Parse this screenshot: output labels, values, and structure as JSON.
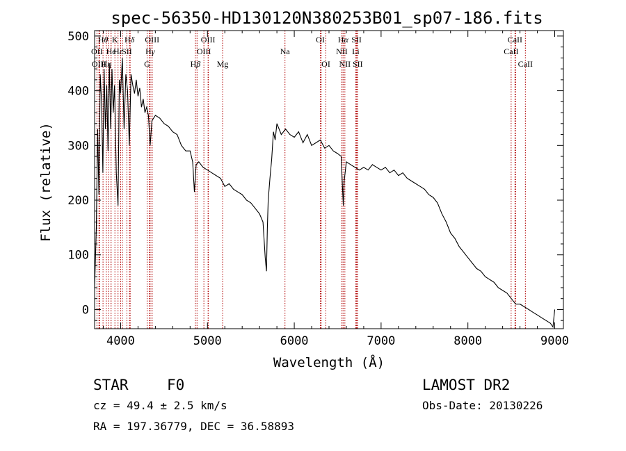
{
  "title": "spec-56350-HD130120N380253B01_sp07-186.fits",
  "info": {
    "obj_class": "STAR",
    "subclass": "F0",
    "cz": "cz = 49.4 ± 2.5 km/s",
    "coords": "RA = 197.36779, DEC =  36.58893",
    "survey": "LAMOST DR2",
    "obs_date": "Obs-Date: 20130226"
  },
  "chart_data": {
    "type": "line",
    "title": "spec-56350-HD130120N380253B01_sp07-186.fits",
    "xlabel": "Wavelength (Å)",
    "ylabel": "Flux (relative)",
    "xlim": [
      3700,
      9100
    ],
    "ylim": [
      -35,
      510
    ],
    "x_ticks": [
      4000,
      5000,
      6000,
      7000,
      8000,
      9000
    ],
    "y_ticks": [
      0,
      100,
      200,
      300,
      400,
      500
    ],
    "grid": false,
    "series": [
      {
        "points": [
          [
            3700,
            40
          ],
          [
            3720,
            150
          ],
          [
            3735,
            330
          ],
          [
            3750,
            210
          ],
          [
            3765,
            430
          ],
          [
            3780,
            380
          ],
          [
            3795,
            250
          ],
          [
            3810,
            440
          ],
          [
            3825,
            330
          ],
          [
            3840,
            410
          ],
          [
            3855,
            290
          ],
          [
            3870,
            450
          ],
          [
            3885,
            330
          ],
          [
            3900,
            440
          ],
          [
            3915,
            360
          ],
          [
            3930,
            410
          ],
          [
            3950,
            250
          ],
          [
            3970,
            190
          ],
          [
            3985,
            420
          ],
          [
            4000,
            395
          ],
          [
            4020,
            460
          ],
          [
            4040,
            330
          ],
          [
            4060,
            430
          ],
          [
            4080,
            400
          ],
          [
            4100,
            300
          ],
          [
            4120,
            430
          ],
          [
            4140,
            410
          ],
          [
            4160,
            395
          ],
          [
            4180,
            420
          ],
          [
            4200,
            390
          ],
          [
            4220,
            405
          ],
          [
            4240,
            370
          ],
          [
            4260,
            385
          ],
          [
            4280,
            360
          ],
          [
            4300,
            370
          ],
          [
            4320,
            355
          ],
          [
            4340,
            300
          ],
          [
            4360,
            345
          ],
          [
            4400,
            355
          ],
          [
            4450,
            350
          ],
          [
            4500,
            340
          ],
          [
            4550,
            335
          ],
          [
            4600,
            325
          ],
          [
            4650,
            320
          ],
          [
            4700,
            300
          ],
          [
            4750,
            290
          ],
          [
            4800,
            290
          ],
          [
            4830,
            270
          ],
          [
            4850,
            215
          ],
          [
            4870,
            265
          ],
          [
            4900,
            270
          ],
          [
            4950,
            260
          ],
          [
            5000,
            255
          ],
          [
            5050,
            250
          ],
          [
            5100,
            245
          ],
          [
            5150,
            240
          ],
          [
            5200,
            225
          ],
          [
            5250,
            230
          ],
          [
            5300,
            220
          ],
          [
            5350,
            215
          ],
          [
            5400,
            210
          ],
          [
            5450,
            200
          ],
          [
            5500,
            195
          ],
          [
            5550,
            185
          ],
          [
            5600,
            175
          ],
          [
            5640,
            160
          ],
          [
            5665,
            95
          ],
          [
            5680,
            70
          ],
          [
            5690,
            150
          ],
          [
            5700,
            200
          ],
          [
            5720,
            240
          ],
          [
            5740,
            275
          ],
          [
            5760,
            325
          ],
          [
            5780,
            310
          ],
          [
            5800,
            340
          ],
          [
            5850,
            320
          ],
          [
            5900,
            330
          ],
          [
            5950,
            320
          ],
          [
            6000,
            315
          ],
          [
            6050,
            325
          ],
          [
            6100,
            305
          ],
          [
            6150,
            320
          ],
          [
            6200,
            300
          ],
          [
            6250,
            305
          ],
          [
            6300,
            310
          ],
          [
            6350,
            295
          ],
          [
            6400,
            300
          ],
          [
            6450,
            290
          ],
          [
            6500,
            285
          ],
          [
            6540,
            280
          ],
          [
            6555,
            225
          ],
          [
            6565,
            190
          ],
          [
            6575,
            235
          ],
          [
            6600,
            270
          ],
          [
            6650,
            265
          ],
          [
            6700,
            260
          ],
          [
            6750,
            255
          ],
          [
            6800,
            260
          ],
          [
            6850,
            255
          ],
          [
            6900,
            265
          ],
          [
            6950,
            260
          ],
          [
            7000,
            255
          ],
          [
            7050,
            260
          ],
          [
            7100,
            250
          ],
          [
            7150,
            255
          ],
          [
            7200,
            245
          ],
          [
            7250,
            250
          ],
          [
            7300,
            240
          ],
          [
            7350,
            235
          ],
          [
            7400,
            230
          ],
          [
            7450,
            225
          ],
          [
            7500,
            220
          ],
          [
            7550,
            210
          ],
          [
            7600,
            205
          ],
          [
            7650,
            195
          ],
          [
            7700,
            175
          ],
          [
            7750,
            160
          ],
          [
            7800,
            140
          ],
          [
            7850,
            130
          ],
          [
            7900,
            115
          ],
          [
            7950,
            105
          ],
          [
            8000,
            95
          ],
          [
            8050,
            85
          ],
          [
            8100,
            75
          ],
          [
            8150,
            70
          ],
          [
            8200,
            60
          ],
          [
            8250,
            55
          ],
          [
            8300,
            50
          ],
          [
            8350,
            40
          ],
          [
            8400,
            35
          ],
          [
            8450,
            30
          ],
          [
            8500,
            20
          ],
          [
            8550,
            10
          ],
          [
            8600,
            10
          ],
          [
            8650,
            5
          ],
          [
            8700,
            0
          ],
          [
            8750,
            -5
          ],
          [
            8800,
            -10
          ],
          [
            8850,
            -15
          ],
          [
            8900,
            -20
          ],
          [
            8950,
            -25
          ],
          [
            8980,
            -32
          ],
          [
            9000,
            0
          ]
        ]
      }
    ],
    "features_top": [
      {
        "name": "H",
        "greek": "θ",
        "wl": 3797,
        "row": 0
      },
      {
        "name": "K",
        "greek": "",
        "wl": 3934,
        "row": 0
      },
      {
        "name": "H",
        "greek": "δ",
        "wl": 4102,
        "row": 0
      },
      {
        "name": "OIII",
        "greek": "",
        "wl": 4363,
        "row": 0
      },
      {
        "name": "OIII",
        "greek": "",
        "wl": 5007,
        "row": 0
      },
      {
        "name": "OI",
        "greek": "",
        "wl": 6300,
        "row": 0
      },
      {
        "name": "H",
        "greek": "α",
        "wl": 6563,
        "row": 0
      },
      {
        "name": "SII",
        "greek": "",
        "wl": 6717,
        "row": 0
      },
      {
        "name": "CaII",
        "greek": "",
        "wl": 8542,
        "row": 0
      },
      {
        "name": "OII",
        "greek": "",
        "wl": 3727,
        "row": 1
      },
      {
        "name": "He",
        "greek": "",
        "wl": 3889,
        "row": 1
      },
      {
        "name": "H",
        "greek": "ε",
        "wl": 3970,
        "row": 1
      },
      {
        "name": "SII",
        "greek": "",
        "wl": 4072,
        "row": 1
      },
      {
        "name": "H",
        "greek": "γ",
        "wl": 4340,
        "row": 1
      },
      {
        "name": "OIII",
        "greek": "",
        "wl": 4959,
        "row": 1
      },
      {
        "name": "Na",
        "greek": "",
        "wl": 5893,
        "row": 1
      },
      {
        "name": "NII",
        "greek": "",
        "wl": 6548,
        "row": 1
      },
      {
        "name": "Li",
        "greek": "",
        "wl": 6708,
        "row": 1
      },
      {
        "name": "CaII",
        "greek": "",
        "wl": 8498,
        "row": 1
      },
      {
        "name": "OIII",
        "greek": "",
        "wl": 3750,
        "row": 2
      },
      {
        "name": "H",
        "greek": "η",
        "wl": 3835,
        "row": 2
      },
      {
        "name": "G",
        "greek": "",
        "wl": 4305,
        "row": 2
      },
      {
        "name": "H",
        "greek": "β",
        "wl": 4861,
        "row": 2
      },
      {
        "name": "Mg",
        "greek": "",
        "wl": 5175,
        "row": 2
      },
      {
        "name": "OI",
        "greek": "",
        "wl": 6364,
        "row": 2
      },
      {
        "name": "NII",
        "greek": "",
        "wl": 6583,
        "row": 2
      },
      {
        "name": "SII",
        "greek": "",
        "wl": 6731,
        "row": 2
      },
      {
        "name": "CaII",
        "greek": "",
        "wl": 8662,
        "row": 2
      }
    ],
    "extra_lines": [
      3760,
      3860,
      3890,
      4000,
      4020,
      4110,
      4330,
      4360,
      4880,
      5010,
      6310,
      6550,
      6720,
      8550
    ]
  }
}
